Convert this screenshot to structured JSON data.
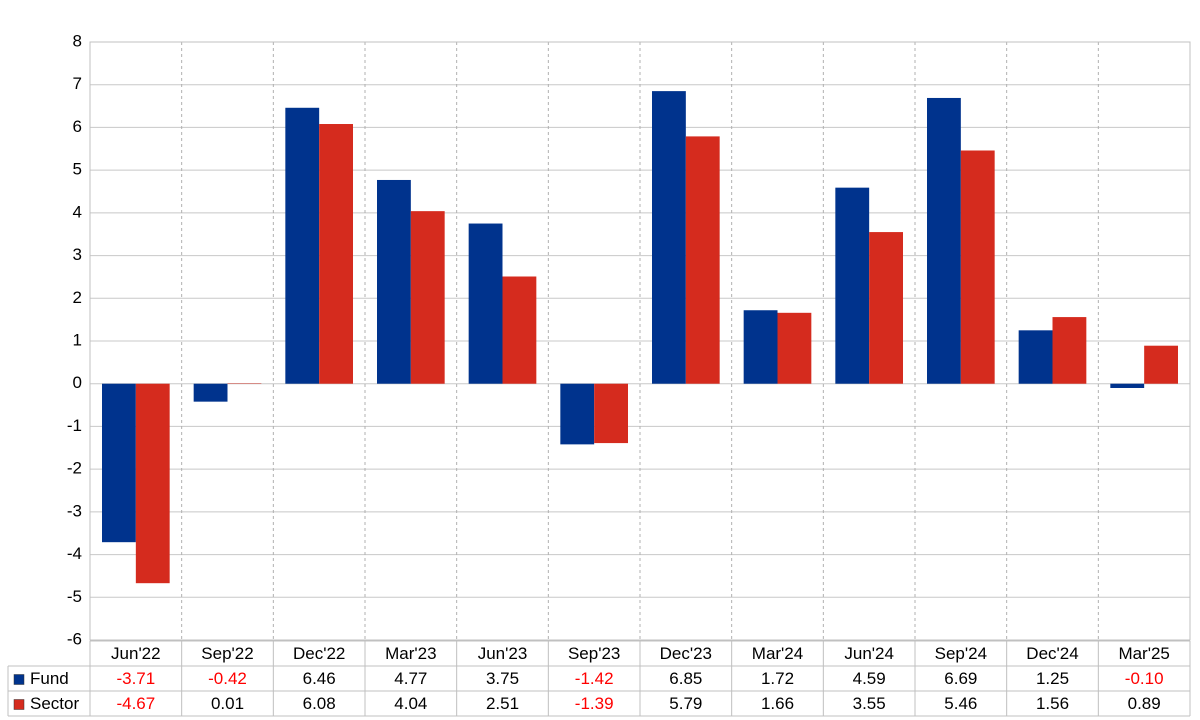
{
  "chart_data": {
    "type": "bar",
    "categories": [
      "Jun'22",
      "Sep'22",
      "Dec'22",
      "Mar'23",
      "Jun'23",
      "Sep'23",
      "Dec'23",
      "Mar'24",
      "Jun'24",
      "Sep'24",
      "Dec'24",
      "Mar'25"
    ],
    "series": [
      {
        "name": "Fund",
        "color": "#00338d",
        "values": [
          -3.71,
          -0.42,
          6.46,
          4.77,
          3.75,
          -1.42,
          6.85,
          1.72,
          4.59,
          6.69,
          1.25,
          -0.1
        ],
        "value_labels": [
          "-3.71",
          "-0.42",
          "6.46",
          "4.77",
          "3.75",
          "-1.42",
          "6.85",
          "1.72",
          "4.59",
          "6.69",
          "1.25",
          "-0.10"
        ]
      },
      {
        "name": "Sector",
        "color": "#d52b1e",
        "values": [
          -4.67,
          0.01,
          6.08,
          4.04,
          2.51,
          -1.39,
          5.79,
          1.66,
          3.55,
          5.46,
          1.56,
          0.89
        ],
        "value_labels": [
          "-4.67",
          "0.01",
          "6.08",
          "4.04",
          "2.51",
          "-1.39",
          "5.79",
          "1.66",
          "3.55",
          "5.46",
          "1.56",
          "0.89"
        ]
      }
    ],
    "ylim": [
      -6,
      8
    ],
    "yticks": [
      -6,
      -5,
      -4,
      -3,
      -2,
      -1,
      0,
      1,
      2,
      3,
      4,
      5,
      6,
      7,
      8
    ],
    "grid": true,
    "negative_label_color": "#ff0000"
  }
}
